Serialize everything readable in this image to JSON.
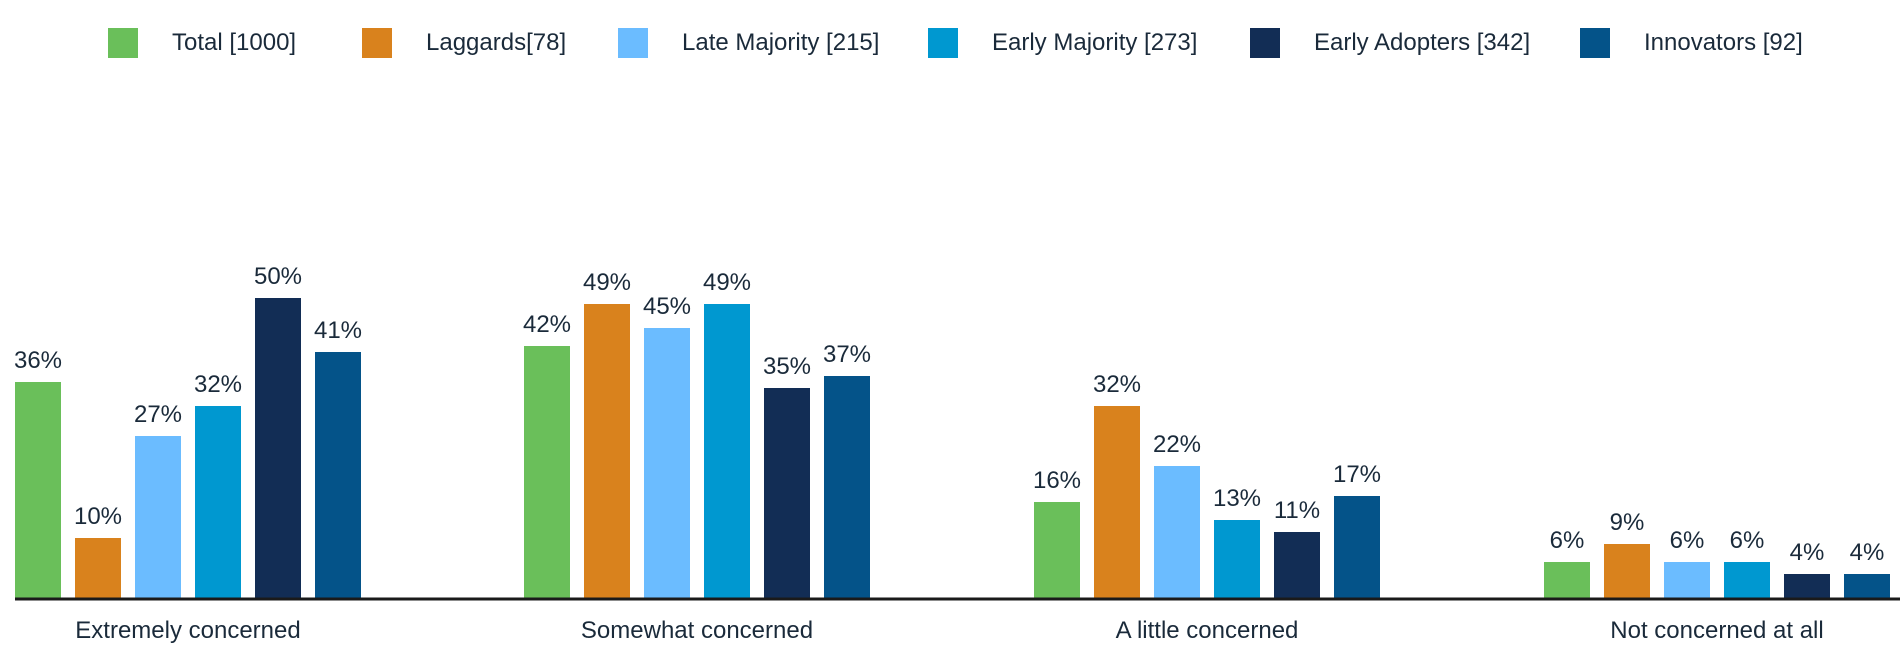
{
  "chart_data": {
    "type": "bar",
    "title": "",
    "xlabel": "",
    "ylabel": "",
    "ylim": [
      0,
      60
    ],
    "grid": false,
    "legend_position": "top",
    "categories": [
      "Extremely concerned",
      "Somewhat concerned",
      "A little concerned",
      "Not concerned at all"
    ],
    "series": [
      {
        "name": "Total [1000]",
        "color": "#6abf5a",
        "values": [
          36,
          42,
          16,
          6
        ],
        "labels": [
          "36%",
          "42%",
          "16%",
          "6%"
        ]
      },
      {
        "name": "Laggards[78]",
        "color": "#d9821d",
        "values": [
          10,
          49,
          32,
          9
        ],
        "labels": [
          "10%",
          "49%",
          "32%",
          "9%"
        ]
      },
      {
        "name": "Late Majority [215]",
        "color": "#6bbcff",
        "values": [
          27,
          45,
          22,
          6
        ],
        "labels": [
          "27%",
          "45%",
          "22%",
          "6%"
        ]
      },
      {
        "name": "Early Majority [273]",
        "color": "#0098d0",
        "values": [
          32,
          49,
          13,
          6
        ],
        "labels": [
          "32%",
          "49%",
          "13%",
          "6%"
        ]
      },
      {
        "name": "Early Adopters [342]",
        "color": "#122d55",
        "values": [
          50,
          35,
          11,
          4
        ],
        "labels": [
          "50%",
          "35%",
          "11%",
          "4%"
        ]
      },
      {
        "name": "Innovators [92]",
        "color": "#045389",
        "values": [
          41,
          37,
          17,
          4
        ],
        "labels": [
          "41%",
          "37%",
          "17%",
          "4%"
        ]
      }
    ]
  }
}
